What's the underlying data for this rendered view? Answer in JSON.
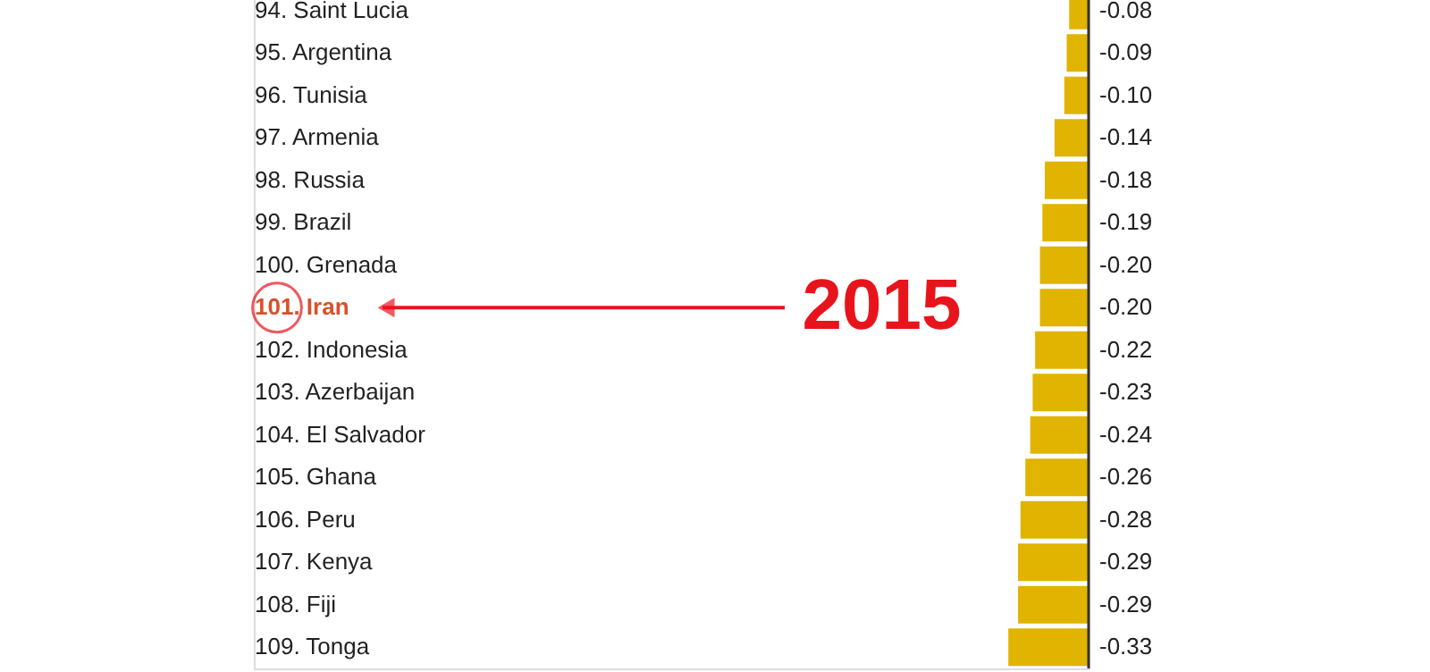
{
  "chart_data": {
    "type": "bar",
    "orientation": "horizontal",
    "categories": [
      "94. Saint Lucia",
      "95. Argentina",
      "96. Tunisia",
      "97. Armenia",
      "98. Russia",
      "99. Brazil",
      "100. Grenada",
      "101. Iran",
      "102. Indonesia",
      "103. Azerbaijan",
      "104. El Salvador",
      "105. Ghana",
      "106. Peru",
      "107. Kenya",
      "108. Fiji",
      "109. Tonga"
    ],
    "values": [
      -0.08,
      -0.09,
      -0.1,
      -0.14,
      -0.18,
      -0.19,
      -0.2,
      -0.2,
      -0.22,
      -0.23,
      -0.24,
      -0.26,
      -0.28,
      -0.29,
      -0.29,
      -0.33
    ],
    "color": "#e0b400",
    "value_labels": [
      "-0.08",
      "-0.09",
      "-0.10",
      "-0.14",
      "-0.18",
      "-0.19",
      "-0.20",
      "-0.20",
      "-0.22",
      "-0.23",
      "-0.24",
      "-0.26",
      "-0.28",
      "-0.29",
      "-0.29",
      "-0.33"
    ],
    "annotations": [
      {
        "text": "2015",
        "x": -0.2,
        "y": "101. Iran"
      }
    ]
  }
}
